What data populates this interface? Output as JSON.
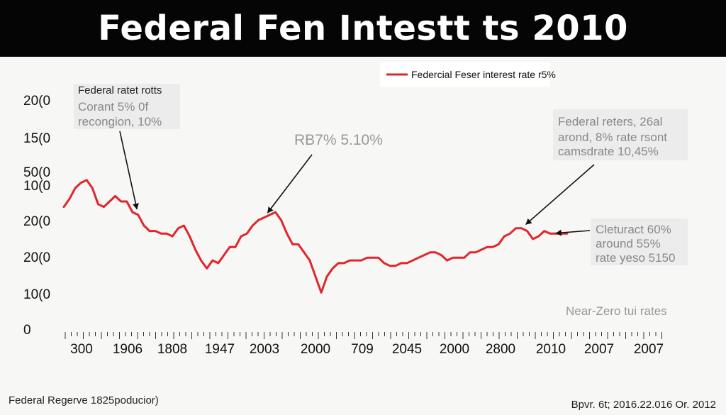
{
  "header": {
    "title": "Federal Fen Intestt ts 2010"
  },
  "footer": {
    "left": "Federal Regerve 1825poducior)",
    "right": "Bpvr. 6t; 2016.22.016 Or. 2012"
  },
  "colors": {
    "line": "#e0262b",
    "title_bg": "#050505",
    "annotation_box": "#e8e8e8"
  },
  "chart_data": {
    "type": "line",
    "title": "Federal Fen Intestt ts 2010",
    "legend": {
      "label": "Federcial Feser interest rate r5%",
      "placement": "top-right"
    },
    "y_tick_labels": [
      "20(0",
      "15(0",
      "50(0",
      "10(0",
      "20(0",
      "20(0",
      "10(0",
      "0"
    ],
    "x_tick_labels": [
      "300",
      "1906",
      "1808",
      "1947",
      "2003",
      "2000",
      "709",
      "2045",
      "2000",
      "2800",
      "2010",
      "2007",
      "2007"
    ],
    "series": [
      {
        "name": "Federcial Feser interest rate r5%",
        "x": [
          0,
          1,
          2,
          3,
          4,
          5,
          6,
          7,
          8,
          9,
          10,
          11,
          12,
          13,
          14,
          15,
          16,
          17,
          18,
          19,
          20,
          21,
          22,
          23,
          24,
          25,
          26,
          27,
          28,
          29,
          30,
          31,
          32,
          33,
          34,
          35,
          36,
          37,
          38,
          39,
          40,
          41,
          42,
          43,
          44,
          45,
          46,
          47,
          48,
          49,
          50,
          51,
          52,
          53,
          54,
          55,
          56,
          57,
          58,
          59,
          60,
          61,
          62,
          63,
          64,
          65,
          66,
          67,
          68,
          69,
          70,
          71,
          72,
          73,
          74,
          75,
          76,
          77,
          78,
          79,
          80,
          81,
          82,
          83,
          84,
          85,
          86,
          87,
          88
        ],
        "y": [
          3.4,
          3.7,
          4.1,
          4.3,
          4.4,
          4.1,
          3.5,
          3.4,
          3.6,
          3.8,
          3.6,
          3.6,
          3.2,
          3.1,
          2.7,
          2.5,
          2.5,
          2.4,
          2.4,
          2.3,
          2.6,
          2.7,
          2.3,
          1.8,
          1.4,
          1.1,
          1.4,
          1.3,
          1.6,
          1.9,
          1.9,
          2.3,
          2.4,
          2.7,
          2.9,
          3.0,
          3.1,
          3.2,
          2.9,
          2.4,
          2.0,
          2.0,
          1.7,
          1.4,
          0.8,
          0.2,
          0.8,
          1.1,
          1.3,
          1.3,
          1.4,
          1.4,
          1.4,
          1.5,
          1.5,
          1.5,
          1.3,
          1.2,
          1.2,
          1.3,
          1.3,
          1.4,
          1.5,
          1.6,
          1.7,
          1.7,
          1.6,
          1.4,
          1.5,
          1.5,
          1.5,
          1.7,
          1.7,
          1.8,
          1.9,
          1.9,
          2.0,
          2.3,
          2.4,
          2.6,
          2.6,
          2.5,
          2.2,
          2.3,
          2.5,
          2.4,
          2.4,
          2.4,
          2.4
        ]
      }
    ],
    "annotations": [
      {
        "id": "ann-1",
        "lines": [
          "Federal ratet rotts",
          "Corant 5% 0f",
          "recongion, 10%"
        ],
        "boxed": true,
        "arrow_to_index": 13
      },
      {
        "id": "ann-2",
        "lines": [
          "RB7% 5.10%"
        ],
        "boxed": false,
        "arrow_to_index": 35
      },
      {
        "id": "ann-3",
        "lines": [
          "Federal reters, 26al",
          "arond, 8% rate rsont",
          "camsdrate 10,45%"
        ],
        "boxed": true,
        "arrow_to_index": 80
      },
      {
        "id": "ann-4",
        "lines": [
          "Cleturact 60%",
          "around 55%",
          "rate yeso 5150"
        ],
        "boxed": true,
        "arrow_to_index": 85
      },
      {
        "id": "ann-5",
        "lines": [
          "Near-Zero tui rates"
        ],
        "boxed": false,
        "arrow_to_index": null
      }
    ],
    "grid": false
  }
}
